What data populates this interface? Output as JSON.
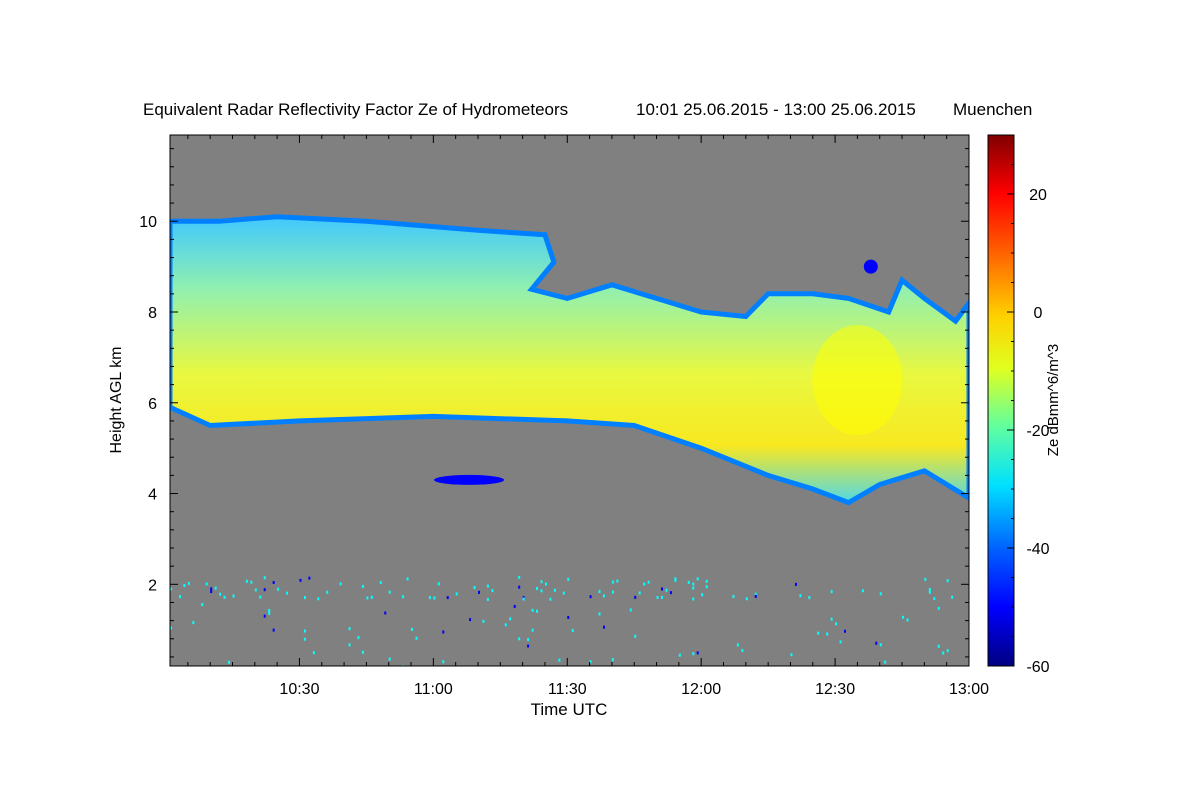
{
  "chart_data": {
    "type": "heatmap",
    "title": "Equivalent Radar Reflectivity Factor Ze of Hydrometeors",
    "time_range": "10:01 25.06.2015 - 13:00 25.06.2015",
    "location": "Muenchen",
    "xlabel": "Time UTC",
    "ylabel": "Height AGL km",
    "xlim": [
      "10:01",
      "13:00"
    ],
    "ylim": [
      0.2,
      11.9
    ],
    "x_ticks": [
      "10:30",
      "11:00",
      "11:30",
      "12:00",
      "12:30",
      "13:00"
    ],
    "y_ticks": [
      2,
      4,
      6,
      8,
      10
    ],
    "colorbar": {
      "label": "Ze dBmm^6/m^3",
      "range": [
        -60,
        30
      ],
      "ticks": [
        20,
        0,
        -20,
        -40,
        -60
      ],
      "colormap": [
        "#000080",
        "#0000ff",
        "#0080ff",
        "#00ffff",
        "#80ff80",
        "#ffff00",
        "#ff8000",
        "#ff0000",
        "#800000"
      ]
    },
    "background_color": "#808080",
    "cloud_layer": {
      "description_units": "km AGL",
      "top": [
        {
          "time": "10:01",
          "height": 10.0
        },
        {
          "time": "10:12",
          "height": 10.0
        },
        {
          "time": "10:25",
          "height": 10.1
        },
        {
          "time": "10:45",
          "height": 10.0
        },
        {
          "time": "11:10",
          "height": 9.8
        },
        {
          "time": "11:25",
          "height": 9.7
        },
        {
          "time": "11:27",
          "height": 9.1
        },
        {
          "time": "11:22",
          "height": 8.5
        },
        {
          "time": "11:30",
          "height": 8.3
        },
        {
          "time": "11:40",
          "height": 8.6
        },
        {
          "time": "11:50",
          "height": 8.3
        },
        {
          "time": "12:00",
          "height": 8.0
        },
        {
          "time": "12:10",
          "height": 7.9
        },
        {
          "time": "12:15",
          "height": 8.4
        },
        {
          "time": "12:25",
          "height": 8.4
        },
        {
          "time": "12:33",
          "height": 8.3
        },
        {
          "time": "12:42",
          "height": 8.0
        },
        {
          "time": "12:45",
          "height": 8.7
        },
        {
          "time": "12:50",
          "height": 8.3
        },
        {
          "time": "12:57",
          "height": 7.8
        },
        {
          "time": "13:00",
          "height": 8.2
        }
      ],
      "base": [
        {
          "time": "10:01",
          "height": 5.9
        },
        {
          "time": "10:10",
          "height": 5.5
        },
        {
          "time": "10:30",
          "height": 5.6
        },
        {
          "time": "11:00",
          "height": 5.7
        },
        {
          "time": "11:30",
          "height": 5.6
        },
        {
          "time": "11:45",
          "height": 5.5
        },
        {
          "time": "12:00",
          "height": 5.0
        },
        {
          "time": "12:15",
          "height": 4.4
        },
        {
          "time": "12:25",
          "height": 4.1
        },
        {
          "time": "12:33",
          "height": 3.8
        },
        {
          "time": "12:40",
          "height": 4.2
        },
        {
          "time": "12:50",
          "height": 4.5
        },
        {
          "time": "13:00",
          "height": 3.9
        }
      ],
      "core_reflectivity_dbz": -5,
      "edge_reflectivity_dbz": -45
    },
    "isolated_echoes": [
      {
        "time": "12:38",
        "height": 9.0,
        "ze": -45
      },
      {
        "time": "11:08",
        "height": 4.3,
        "ze": -45
      }
    ],
    "low_level_clutter": {
      "height_range": [
        0.2,
        2.2
      ],
      "ze": -30
    }
  }
}
